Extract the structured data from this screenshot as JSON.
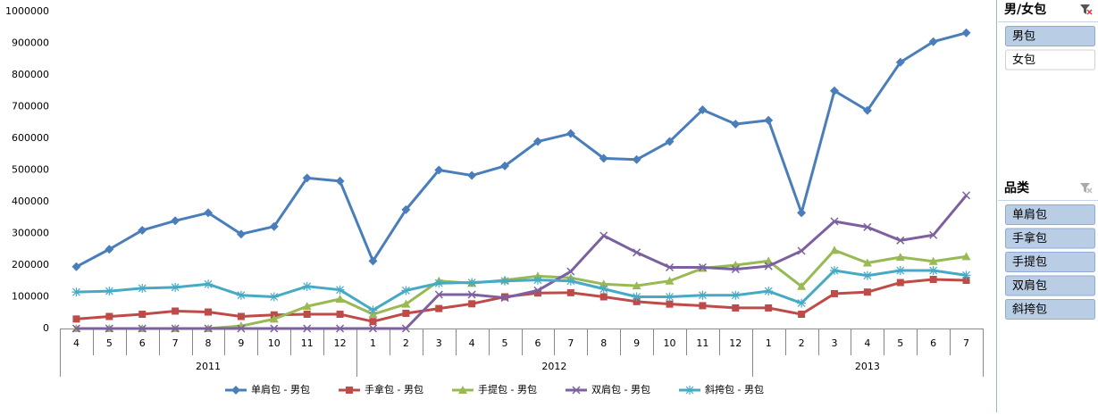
{
  "chart_data": {
    "type": "line",
    "categories": [
      "4",
      "5",
      "6",
      "7",
      "8",
      "9",
      "10",
      "11",
      "12",
      "1",
      "2",
      "3",
      "4",
      "5",
      "6",
      "7",
      "8",
      "9",
      "10",
      "11",
      "12",
      "1",
      "2",
      "3",
      "4",
      "5",
      "6",
      "7"
    ],
    "category_groups": [
      {
        "label": "2011",
        "count": 9
      },
      {
        "label": "2012",
        "count": 12
      },
      {
        "label": "2013",
        "count": 7
      }
    ],
    "ylim": [
      0,
      1000000
    ],
    "yticks": [
      0,
      100000,
      200000,
      300000,
      400000,
      500000,
      600000,
      700000,
      800000,
      900000,
      1000000
    ],
    "grid": false,
    "legend": "bottom",
    "series": [
      {
        "name": "单肩包 - 男包",
        "color": "#4a7ebb",
        "marker": "diamond",
        "values": [
          195000,
          250000,
          310000,
          340000,
          365000,
          298000,
          322000,
          475000,
          465000,
          213000,
          375000,
          500000,
          483000,
          513000,
          590000,
          615000,
          537000,
          533000,
          590000,
          690000,
          645000,
          657000,
          365000,
          750000,
          688000,
          840000,
          905000,
          933000
        ]
      },
      {
        "name": "手拿包 - 男包",
        "color": "#be4b48",
        "marker": "square",
        "values": [
          30000,
          38000,
          45000,
          55000,
          52000,
          38000,
          43000,
          45000,
          45000,
          22000,
          48000,
          63000,
          78000,
          100000,
          112000,
          113000,
          100000,
          85000,
          77000,
          72000,
          65000,
          65000,
          45000,
          110000,
          115000,
          145000,
          155000,
          152000
        ]
      },
      {
        "name": "手提包 - 男包",
        "color": "#98b954",
        "marker": "triangle",
        "values": [
          0,
          0,
          0,
          0,
          0,
          8000,
          30000,
          70000,
          93000,
          45000,
          77000,
          150000,
          143000,
          153000,
          165000,
          160000,
          140000,
          135000,
          150000,
          190000,
          200000,
          213000,
          133000,
          247000,
          207000,
          225000,
          212000,
          227000
        ]
      },
      {
        "name": "双肩包 - 男包",
        "color": "#7d60a0",
        "marker": "x",
        "values": [
          0,
          0,
          0,
          0,
          0,
          0,
          0,
          0,
          0,
          0,
          0,
          107000,
          107000,
          97000,
          120000,
          180000,
          293000,
          240000,
          193000,
          193000,
          187000,
          197000,
          245000,
          338000,
          320000,
          278000,
          295000,
          420000
        ]
      },
      {
        "name": "斜挎包 - 男包",
        "color": "#46aac5",
        "marker": "star",
        "values": [
          115000,
          118000,
          127000,
          130000,
          140000,
          105000,
          100000,
          133000,
          122000,
          58000,
          120000,
          143000,
          145000,
          150000,
          153000,
          150000,
          125000,
          100000,
          100000,
          105000,
          105000,
          118000,
          80000,
          183000,
          167000,
          183000,
          183000,
          168000
        ]
      }
    ]
  },
  "slicers": [
    {
      "title": "男/女包",
      "items": [
        {
          "label": "男包",
          "selected": true
        },
        {
          "label": "女包",
          "selected": false
        }
      ]
    },
    {
      "title": "品类",
      "items": [
        {
          "label": "单肩包",
          "selected": true
        },
        {
          "label": "手拿包",
          "selected": true
        },
        {
          "label": "手提包",
          "selected": true
        },
        {
          "label": "双肩包",
          "selected": true
        },
        {
          "label": "斜挎包",
          "selected": true
        }
      ]
    }
  ]
}
